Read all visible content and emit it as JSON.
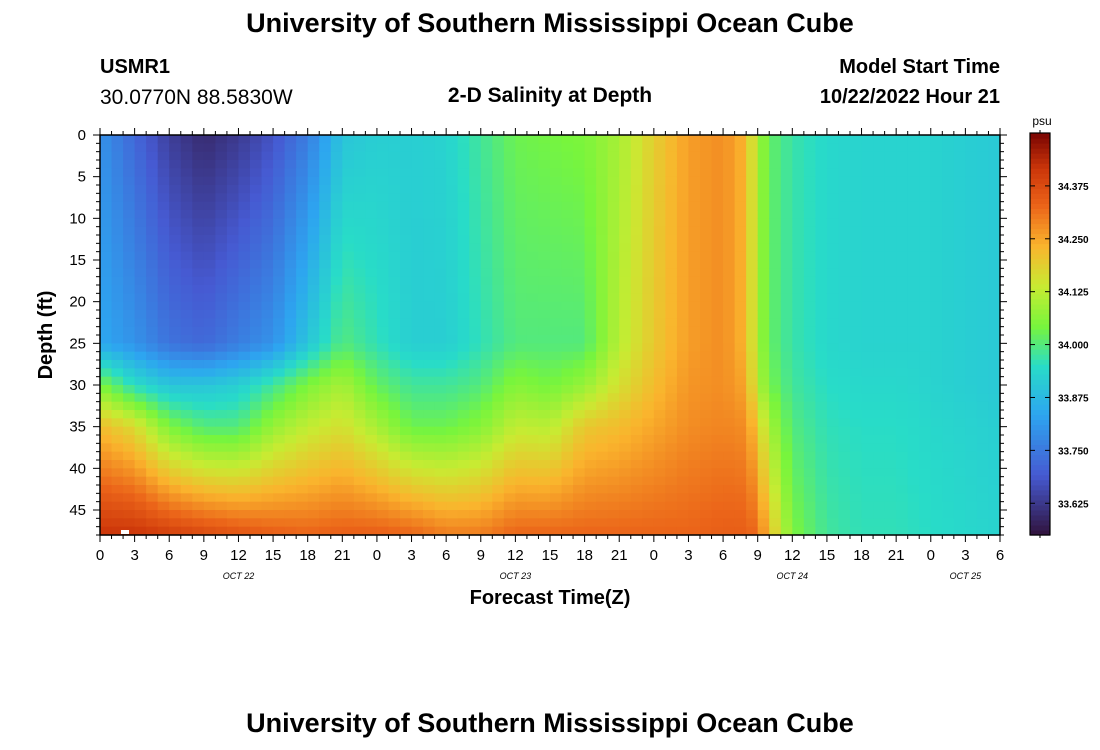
{
  "header": {
    "title": "University of Southern Mississippi Ocean Cube",
    "station_id": "USMR1",
    "coords": "30.0770N  88.5830W",
    "plot_title": "2-D Salinity at Depth",
    "model_start_label": "Model Start Time",
    "model_start_value": "10/22/2022 Hour 21"
  },
  "footer": {
    "title": "University of Southern Mississippi Ocean Cube"
  },
  "colors": {
    "text": "#000000",
    "marker": "#ffffff"
  },
  "chart_data": {
    "type": "heatmap",
    "title": "2-D Salinity at Depth",
    "xlabel": "Forecast Time(Z)",
    "ylabel": "Depth (ft)",
    "x_range_hours": [
      0,
      78
    ],
    "y_range_ft": [
      0,
      48
    ],
    "y_ticks": [
      "0",
      "5",
      "10",
      "15",
      "20",
      "25",
      "30",
      "35",
      "40",
      "45"
    ],
    "y_tick_values": [
      0,
      5,
      10,
      15,
      20,
      25,
      30,
      35,
      40,
      45
    ],
    "x_ticks": [
      "0",
      "3",
      "6",
      "9",
      "12",
      "15",
      "18",
      "21",
      "0",
      "3",
      "6",
      "9",
      "12",
      "15",
      "18",
      "21",
      "0",
      "3",
      "6",
      "9",
      "12",
      "15",
      "18",
      "21",
      "0",
      "3",
      "6"
    ],
    "x_tick_hours": [
      0,
      3,
      6,
      9,
      12,
      15,
      18,
      21,
      24,
      27,
      30,
      33,
      36,
      39,
      42,
      45,
      48,
      51,
      54,
      57,
      60,
      63,
      66,
      69,
      72,
      75,
      78
    ],
    "date_labels": [
      {
        "label": "OCT 22",
        "hour": 12
      },
      {
        "label": "OCT 23",
        "hour": 36
      },
      {
        "label": "OCT 24",
        "hour": 60
      },
      {
        "label": "OCT 25",
        "hour": 75
      }
    ],
    "colorbar": {
      "unit": "psu",
      "min": 33.55,
      "max": 34.5,
      "tick_labels": [
        "34.375",
        "34.250",
        "34.125",
        "34.000",
        "33.875",
        "33.750",
        "33.625"
      ],
      "tick_values": [
        34.375,
        34.25,
        34.125,
        34.0,
        33.875,
        33.75,
        33.625
      ]
    },
    "salinity_profiles": [
      {
        "hour": 0,
        "d0": 33.8,
        "d25": 33.84,
        "d30": 34.05,
        "d35": 34.22,
        "d48": 34.42
      },
      {
        "hour": 3,
        "d0": 33.72,
        "d25": 33.8,
        "d30": 33.95,
        "d35": 34.17,
        "d48": 34.42
      },
      {
        "hour": 6,
        "d0": 33.64,
        "d25": 33.74,
        "d30": 33.9,
        "d35": 34.05,
        "d48": 34.4
      },
      {
        "hour": 9,
        "d0": 33.6,
        "d25": 33.72,
        "d30": 33.9,
        "d35": 34.0,
        "d48": 34.38
      },
      {
        "hour": 12,
        "d0": 33.63,
        "d25": 33.76,
        "d30": 33.92,
        "d35": 34.0,
        "d48": 34.36
      },
      {
        "hour": 15,
        "d0": 33.68,
        "d25": 33.8,
        "d30": 33.98,
        "d35": 34.08,
        "d48": 34.34
      },
      {
        "hour": 18,
        "d0": 33.76,
        "d25": 33.9,
        "d30": 34.05,
        "d35": 34.13,
        "d48": 34.33
      },
      {
        "hour": 21,
        "d0": 33.9,
        "d25": 34.0,
        "d30": 34.1,
        "d35": 34.16,
        "d48": 34.34
      },
      {
        "hour": 24,
        "d0": 33.92,
        "d25": 33.96,
        "d30": 34.02,
        "d35": 34.1,
        "d48": 34.34
      },
      {
        "hour": 27,
        "d0": 33.92,
        "d25": 33.92,
        "d30": 33.98,
        "d35": 34.03,
        "d48": 34.33
      },
      {
        "hour": 30,
        "d0": 33.93,
        "d25": 33.92,
        "d30": 33.98,
        "d35": 34.03,
        "d48": 34.3
      },
      {
        "hour": 33,
        "d0": 33.98,
        "d25": 33.96,
        "d30": 34.0,
        "d35": 34.06,
        "d48": 34.3
      },
      {
        "hour": 36,
        "d0": 34.03,
        "d25": 34.0,
        "d30": 34.06,
        "d35": 34.13,
        "d48": 34.33
      },
      {
        "hour": 39,
        "d0": 34.04,
        "d25": 34.0,
        "d30": 34.04,
        "d35": 34.12,
        "d48": 34.33
      },
      {
        "hour": 42,
        "d0": 34.05,
        "d25": 34.0,
        "d30": 34.08,
        "d35": 34.2,
        "d48": 34.33
      },
      {
        "hour": 45,
        "d0": 34.1,
        "d25": 34.12,
        "d30": 34.16,
        "d35": 34.22,
        "d48": 34.33
      },
      {
        "hour": 48,
        "d0": 34.19,
        "d25": 34.2,
        "d30": 34.22,
        "d35": 34.25,
        "d48": 34.33
      },
      {
        "hour": 51,
        "d0": 34.26,
        "d25": 34.26,
        "d30": 34.27,
        "d35": 34.28,
        "d48": 34.33
      },
      {
        "hour": 54,
        "d0": 34.28,
        "d25": 34.28,
        "d30": 34.28,
        "d35": 34.29,
        "d48": 34.34
      },
      {
        "hour": 56,
        "d0": 34.23,
        "d25": 34.23,
        "d30": 34.25,
        "d35": 34.28,
        "d48": 34.34
      },
      {
        "hour": 57,
        "d0": 34.1,
        "d25": 34.1,
        "d30": 34.12,
        "d35": 34.2,
        "d48": 34.32
      },
      {
        "hour": 58,
        "d0": 34.02,
        "d25": 34.02,
        "d30": 34.04,
        "d35": 34.1,
        "d48": 34.22
      },
      {
        "hour": 60,
        "d0": 33.97,
        "d25": 33.97,
        "d30": 33.98,
        "d35": 34.0,
        "d48": 34.05
      },
      {
        "hour": 63,
        "d0": 33.94,
        "d25": 33.94,
        "d30": 33.95,
        "d35": 33.96,
        "d48": 33.98
      },
      {
        "hour": 66,
        "d0": 33.93,
        "d25": 33.93,
        "d30": 33.94,
        "d35": 33.95,
        "d48": 33.96
      },
      {
        "hour": 69,
        "d0": 33.93,
        "d25": 33.93,
        "d30": 33.94,
        "d35": 33.95,
        "d48": 33.96
      },
      {
        "hour": 72,
        "d0": 33.93,
        "d25": 33.93,
        "d30": 33.93,
        "d35": 33.94,
        "d48": 33.95
      },
      {
        "hour": 75,
        "d0": 33.92,
        "d25": 33.92,
        "d30": 33.92,
        "d35": 33.93,
        "d48": 33.94
      },
      {
        "hour": 78,
        "d0": 33.91,
        "d25": 33.91,
        "d30": 33.91,
        "d35": 33.92,
        "d48": 33.93
      }
    ]
  }
}
